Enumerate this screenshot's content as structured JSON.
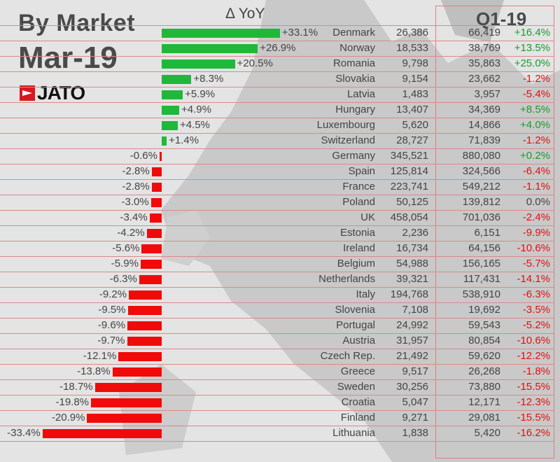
{
  "header": {
    "title": "By Market",
    "period": "Mar-19",
    "logo": "JATO",
    "yoy_label": "Δ YoY",
    "q1_label": "Q1-19"
  },
  "colors": {
    "positive": "#1fb83a",
    "negative": "#f00a0a",
    "pos_text": "#1f9a2a",
    "neg_text": "#e01010"
  },
  "chart_data": {
    "type": "bar",
    "title": "By Market Mar-19",
    "xlabel": "Δ YoY",
    "categories": [
      "Denmark",
      "Norway",
      "Romania",
      "Slovakia",
      "Latvia",
      "Hungary",
      "Luxembourg",
      "Switzerland",
      "Germany",
      "Spain",
      "France",
      "Poland",
      "UK",
      "Estonia",
      "Ireland",
      "Belgium",
      "Netherlands",
      "Italy",
      "Slovenia",
      "Portugal",
      "Austria",
      "Czech Rep.",
      "Greece",
      "Sweden",
      "Croatia",
      "Finland",
      "Lithuania"
    ],
    "yoy": [
      33.1,
      26.9,
      20.5,
      8.3,
      5.9,
      4.9,
      4.5,
      1.4,
      -0.6,
      -2.8,
      -2.8,
      -3.0,
      -3.4,
      -4.2,
      -5.6,
      -5.9,
      -6.3,
      -9.2,
      -9.5,
      -9.6,
      -9.7,
      -12.1,
      -13.8,
      -18.7,
      -19.8,
      -20.9,
      -33.4
    ],
    "yoy_labels": [
      "+33.1%",
      "+26.9%",
      "+20.5%",
      "+8.3%",
      "+5.9%",
      "+4.9%",
      "+4.5%",
      "+1.4%",
      "-0.6%",
      "-2.8%",
      "-2.8%",
      "-3.0%",
      "-3.4%",
      "-4.2%",
      "-5.6%",
      "-5.9%",
      "-6.3%",
      "-9.2%",
      "-9.5%",
      "-9.6%",
      "-9.7%",
      "-12.1%",
      "-13.8%",
      "-18.7%",
      "-19.8%",
      "-20.9%",
      "-33.4%"
    ],
    "mar19": [
      "26,386",
      "18,533",
      "9,798",
      "9,154",
      "1,483",
      "13,407",
      "5,620",
      "28,727",
      "345,521",
      "125,814",
      "223,741",
      "50,125",
      "458,054",
      "2,236",
      "16,734",
      "54,988",
      "39,321",
      "194,768",
      "7,108",
      "24,992",
      "31,957",
      "21,492",
      "9,517",
      "30,256",
      "5,047",
      "9,271",
      "1,838"
    ],
    "q1_19": [
      "66,419",
      "38,769",
      "35,863",
      "23,662",
      "3,957",
      "34,369",
      "14,866",
      "71,839",
      "880,080",
      "324,566",
      "549,212",
      "139,812",
      "701,036",
      "6,151",
      "64,156",
      "156,165",
      "117,431",
      "538,910",
      "19,692",
      "59,543",
      "80,854",
      "59,620",
      "26,268",
      "73,880",
      "12,171",
      "29,081",
      "5,420"
    ],
    "q1_change": [
      "+16.4%",
      "+13.5%",
      "+25.0%",
      "-1.2%",
      "-5.4%",
      "+8.5%",
      "+4.0%",
      "-1.2%",
      "+0.2%",
      "-6.4%",
      "-1.1%",
      "0.0%",
      "-2.4%",
      "-9.9%",
      "-10.6%",
      "-5.7%",
      "-14.1%",
      "-6.3%",
      "-3.5%",
      "-5.2%",
      "-10.6%",
      "-12.2%",
      "-1.8%",
      "-15.5%",
      "-12.3%",
      "-15.5%",
      "-16.2%"
    ],
    "xlim": [
      -34,
      34
    ]
  }
}
